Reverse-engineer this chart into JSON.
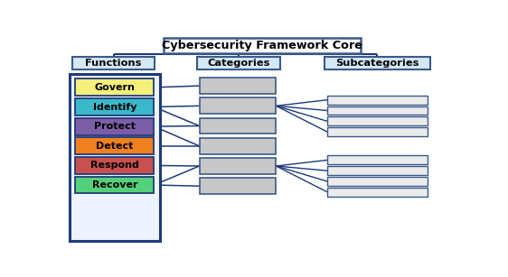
{
  "title": "Cybersecurity Framework Core",
  "columns": [
    "Functions",
    "Categories",
    "Subcategories"
  ],
  "functions": [
    {
      "label": "Govern",
      "color": "#F5F07A"
    },
    {
      "label": "Identify",
      "color": "#3BB8CA"
    },
    {
      "label": "Protect",
      "color": "#7B5EA7"
    },
    {
      "label": "Detect",
      "color": "#F08020"
    },
    {
      "label": "Respond",
      "color": "#C85050"
    },
    {
      "label": "Recover",
      "color": "#55D07A"
    }
  ],
  "category_color": "#C8C8C8",
  "subcategory_color": "#EBEBEB",
  "header_fill": "#D5E8F5",
  "header_edge": "#3A5A8A",
  "title_fill": "#FFFFFF",
  "title_edge": "#3A5A8A",
  "functions_border": "#1E3A7A",
  "functions_bg": "#EEF4FF",
  "arrow_color": "#1E3A7A",
  "bg_color": "#FFFFFF",
  "figsize": [
    5.62,
    3.07
  ],
  "dpi": 100
}
